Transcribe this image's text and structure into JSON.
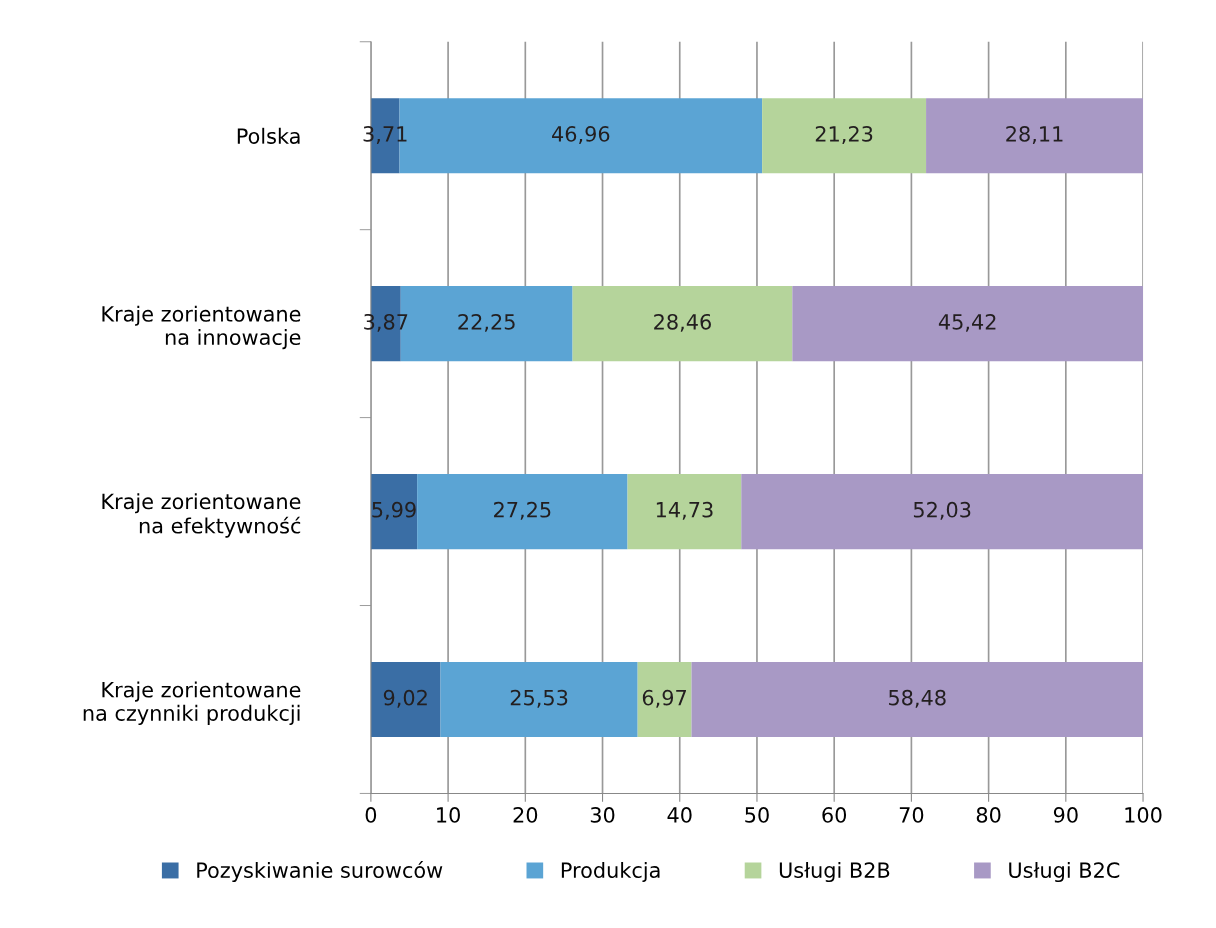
{
  "chart_data": {
    "type": "bar",
    "orientation": "horizontal",
    "stacked": true,
    "categories": [
      "Polska",
      "Kraje zorientowane\nna innowacje",
      "Kraje zorientowane\nna efektywność",
      "Kraje zorientowane\nna czynniki produkcji"
    ],
    "series": [
      {
        "name": "Pozyskiwanie surowców",
        "color": "#3a6ea5",
        "values": [
          3.71,
          3.87,
          5.99,
          9.02
        ],
        "value_labels": [
          "3,71",
          "3,87",
          "5,99",
          "9,02"
        ]
      },
      {
        "name": "Produkcja",
        "color": "#5ba4d4",
        "values": [
          46.96,
          22.25,
          27.25,
          25.53
        ],
        "value_labels": [
          "46,96",
          "22,25",
          "27,25",
          "25,53"
        ]
      },
      {
        "name": "Usługi B2B",
        "color": "#b5d49b",
        "values": [
          21.23,
          28.46,
          14.73,
          6.97
        ],
        "value_labels": [
          "21,23",
          "28,46",
          "14,73",
          "6,97"
        ]
      },
      {
        "name": "Usługi B2C",
        "color": "#a899c5",
        "values": [
          28.11,
          45.42,
          52.03,
          58.48
        ],
        "value_labels": [
          "28,11",
          "45,42",
          "52,03",
          "58,48"
        ]
      }
    ],
    "xlim": [
      0,
      100
    ],
    "xticks": [
      0,
      10,
      20,
      30,
      40,
      50,
      60,
      70,
      80,
      90,
      100
    ],
    "grid": "x",
    "legend": "bottom"
  }
}
